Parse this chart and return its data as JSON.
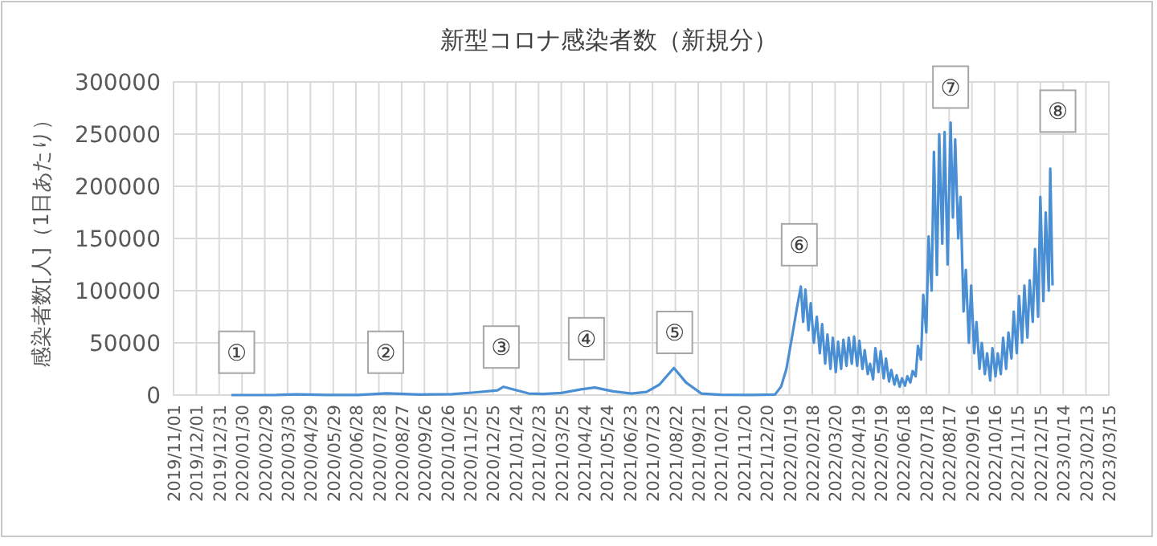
{
  "chart_data": {
    "type": "line",
    "title": "新型コロナ感染者数（新規分）",
    "ylabel": "感染者数[人]（1日あたり）",
    "xlim": [
      "2019-11-01",
      "2023-03-15"
    ],
    "xticks": [
      {
        "value": "2019-11-01",
        "label": "2019/11/01"
      },
      {
        "value": "2019-12-01",
        "label": "2019/12/01"
      },
      {
        "value": "2019-12-31",
        "label": "2019/12/31"
      },
      {
        "value": "2020-01-30",
        "label": "2020/01/30"
      },
      {
        "value": "2020-02-29",
        "label": "2020/02/29"
      },
      {
        "value": "2020-03-30",
        "label": "2020/03/30"
      },
      {
        "value": "2020-04-29",
        "label": "2020/04/29"
      },
      {
        "value": "2020-05-29",
        "label": "2020/05/29"
      },
      {
        "value": "2020-06-28",
        "label": "2020/06/28"
      },
      {
        "value": "2020-07-28",
        "label": "2020/07/28"
      },
      {
        "value": "2020-08-27",
        "label": "2020/08/27"
      },
      {
        "value": "2020-09-26",
        "label": "2020/09/26"
      },
      {
        "value": "2020-10-26",
        "label": "2020/10/26"
      },
      {
        "value": "2020-11-25",
        "label": "2020/11/25"
      },
      {
        "value": "2020-12-25",
        "label": "2020/12/25"
      },
      {
        "value": "2021-01-24",
        "label": "2021/01/24"
      },
      {
        "value": "2021-02-23",
        "label": "2021/02/23"
      },
      {
        "value": "2021-03-25",
        "label": "2021/03/25"
      },
      {
        "value": "2021-04-24",
        "label": "2021/04/24"
      },
      {
        "value": "2021-05-24",
        "label": "2021/05/24"
      },
      {
        "value": "2021-06-23",
        "label": "2021/06/23"
      },
      {
        "value": "2021-07-23",
        "label": "2021/07/23"
      },
      {
        "value": "2021-08-22",
        "label": "2021/08/22"
      },
      {
        "value": "2021-09-21",
        "label": "2021/09/21"
      },
      {
        "value": "2021-10-21",
        "label": "2021/10/21"
      },
      {
        "value": "2021-11-20",
        "label": "2021/11/20"
      },
      {
        "value": "2021-12-20",
        "label": "2021/12/20"
      },
      {
        "value": "2022-01-19",
        "label": "2022/01/19"
      },
      {
        "value": "2022-02-18",
        "label": "2022/02/18"
      },
      {
        "value": "2022-03-20",
        "label": "2022/03/20"
      },
      {
        "value": "2022-04-19",
        "label": "2022/04/19"
      },
      {
        "value": "2022-05-19",
        "label": "2022/05/19"
      },
      {
        "value": "2022-06-18",
        "label": "2022/06/18"
      },
      {
        "value": "2022-07-18",
        "label": "2022/07/18"
      },
      {
        "value": "2022-08-17",
        "label": "2022/08/17"
      },
      {
        "value": "2022-09-16",
        "label": "2022/09/16"
      },
      {
        "value": "2022-10-16",
        "label": "2022/10/16"
      },
      {
        "value": "2022-11-15",
        "label": "2022/11/15"
      },
      {
        "value": "2022-12-15",
        "label": "2022/12/15"
      },
      {
        "value": "2023-01-14",
        "label": "2023/01/14"
      },
      {
        "value": "2023-02-13",
        "label": "2023/02/13"
      },
      {
        "value": "2023-03-15",
        "label": "2023/03/15"
      }
    ],
    "ylim": [
      0,
      300000
    ],
    "yticks": [
      0,
      50000,
      100000,
      150000,
      200000,
      250000,
      300000
    ],
    "grid": true,
    "marker": "none",
    "line_style": "solid",
    "series": [
      {
        "color": "#4a8fd4",
        "x": [
          "2020-01-16",
          "2020-03-15",
          "2020-04-11",
          "2020-05-20",
          "2020-07-01",
          "2020-08-07",
          "2020-09-20",
          "2020-11-01",
          "2020-12-01",
          "2020-12-31",
          "2021-01-08",
          "2021-02-10",
          "2021-03-01",
          "2021-03-25",
          "2021-04-20",
          "2021-05-08",
          "2021-06-01",
          "2021-06-25",
          "2021-07-15",
          "2021-08-01",
          "2021-08-20",
          "2021-09-05",
          "2021-09-25",
          "2021-10-20",
          "2021-12-01",
          "2021-12-31",
          "2022-01-08",
          "2022-01-15",
          "2022-01-22",
          "2022-01-29",
          "2022-02-03",
          "2022-02-06",
          "2022-02-09",
          "2022-02-13",
          "2022-02-16",
          "2022-02-20",
          "2022-02-24",
          "2022-02-28",
          "2022-03-03",
          "2022-03-07",
          "2022-03-10",
          "2022-03-14",
          "2022-03-17",
          "2022-03-21",
          "2022-03-24",
          "2022-03-28",
          "2022-03-31",
          "2022-04-04",
          "2022-04-07",
          "2022-04-11",
          "2022-04-14",
          "2022-04-18",
          "2022-04-21",
          "2022-04-25",
          "2022-04-28",
          "2022-05-02",
          "2022-05-05",
          "2022-05-09",
          "2022-05-12",
          "2022-05-16",
          "2022-05-19",
          "2022-05-23",
          "2022-05-26",
          "2022-05-30",
          "2022-06-02",
          "2022-06-06",
          "2022-06-09",
          "2022-06-13",
          "2022-06-16",
          "2022-06-20",
          "2022-06-23",
          "2022-06-27",
          "2022-06-30",
          "2022-07-04",
          "2022-07-07",
          "2022-07-11",
          "2022-07-14",
          "2022-07-18",
          "2022-07-21",
          "2022-07-25",
          "2022-07-28",
          "2022-08-01",
          "2022-08-04",
          "2022-08-08",
          "2022-08-11",
          "2022-08-15",
          "2022-08-19",
          "2022-08-22",
          "2022-08-25",
          "2022-08-29",
          "2022-09-01",
          "2022-09-05",
          "2022-09-08",
          "2022-09-12",
          "2022-09-15",
          "2022-09-19",
          "2022-09-22",
          "2022-09-26",
          "2022-09-29",
          "2022-10-03",
          "2022-10-06",
          "2022-10-10",
          "2022-10-13",
          "2022-10-17",
          "2022-10-20",
          "2022-10-24",
          "2022-10-27",
          "2022-10-31",
          "2022-11-03",
          "2022-11-07",
          "2022-11-10",
          "2022-11-14",
          "2022-11-17",
          "2022-11-21",
          "2022-11-24",
          "2022-11-28",
          "2022-12-01",
          "2022-12-05",
          "2022-12-08",
          "2022-12-12",
          "2022-12-15",
          "2022-12-19",
          "2022-12-22",
          "2022-12-26",
          "2022-12-28",
          "2022-12-31"
        ],
        "values": [
          0,
          50,
          700,
          30,
          100,
          1600,
          500,
          900,
          2500,
          4500,
          7900,
          1500,
          1000,
          2000,
          5500,
          7200,
          3500,
          1500,
          3000,
          10000,
          25900,
          12000,
          1500,
          300,
          100,
          500,
          8000,
          25000,
          54000,
          84000,
          104000,
          70000,
          101000,
          62000,
          88000,
          50000,
          75000,
          40000,
          68000,
          30000,
          58000,
          25000,
          55000,
          22000,
          51000,
          25000,
          53000,
          28000,
          55000,
          30000,
          56000,
          28000,
          52000,
          25000,
          43000,
          20000,
          30000,
          15000,
          45000,
          22000,
          42000,
          16000,
          35000,
          13000,
          24000,
          10000,
          19000,
          8000,
          16000,
          9000,
          18000,
          12000,
          23000,
          18000,
          47000,
          34000,
          96000,
          60000,
          152000,
          100000,
          233000,
          115000,
          250000,
          145000,
          252000,
          125000,
          261000,
          170000,
          245000,
          150000,
          190000,
          80000,
          120000,
          50000,
          105000,
          40000,
          70000,
          25000,
          50000,
          20000,
          40000,
          14000,
          45000,
          18000,
          40000,
          20000,
          55000,
          25000,
          60000,
          35000,
          80000,
          40000,
          95000,
          50000,
          105000,
          55000,
          110000,
          70000,
          140000,
          75000,
          190000,
          90000,
          175000,
          100000,
          217000,
          105000
        ]
      }
    ],
    "annotations": [
      {
        "text": "①",
        "x": "2020-01-23",
        "y": 41000
      },
      {
        "text": "②",
        "x": "2020-08-06",
        "y": 41000
      },
      {
        "text": "③",
        "x": "2021-01-05",
        "y": 46000
      },
      {
        "text": "④",
        "x": "2021-04-27",
        "y": 54000
      },
      {
        "text": "⑤",
        "x": "2021-08-21",
        "y": 60000
      },
      {
        "text": "⑥",
        "x": "2022-02-01",
        "y": 144000
      },
      {
        "text": "⑦",
        "x": "2022-08-19",
        "y": 295000
      },
      {
        "text": "⑧",
        "x": "2023-01-07",
        "y": 272000
      }
    ]
  }
}
